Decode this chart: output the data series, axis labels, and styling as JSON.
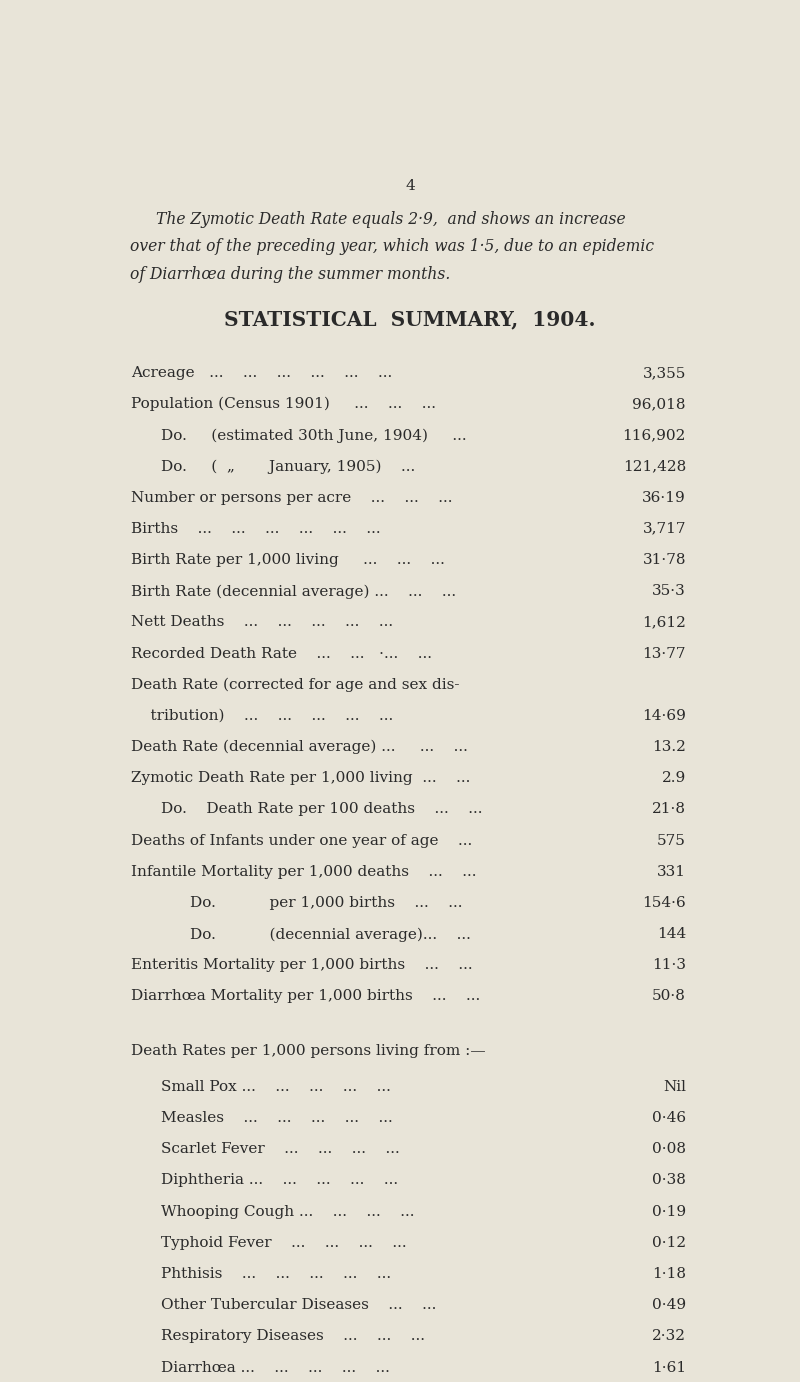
{
  "page_number": "4",
  "bg_color": "#e8e4d8",
  "text_color": "#2a2a2a",
  "intro_lines": [
    "The Zymotic Death Rate equals 2·9,  and shows an increase",
    "over that of the preceding year, which was 1·5, due to an epidemic",
    "of Diarrhœa during the summer months."
  ],
  "title": "STATISTICAL  SUMMARY,  1904.",
  "rows": [
    {
      "label": "Acreage   ...    ...    ...    ...    ...    ...",
      "indent": 0,
      "value": "3,355"
    },
    {
      "label": "Population (Census 1901)     ...    ...    ...",
      "indent": 0,
      "value": "96,018"
    },
    {
      "label": "Do.     (estimated 30th June, 1904)     ...",
      "indent": 1,
      "value": "116,902"
    },
    {
      "label": "Do.     (  „       January, 1905)    ...",
      "indent": 1,
      "value": "121,428"
    },
    {
      "label": "Number or persons per acre    ...    ...    ...",
      "indent": 0,
      "value": "36·19"
    },
    {
      "label": "Births    ...    ...    ...    ...    ...    ...",
      "indent": 0,
      "value": "3,717"
    },
    {
      "label": "Birth Rate per 1,000 living     ...    ...    ...",
      "indent": 0,
      "value": "31·78"
    },
    {
      "label": "Birth Rate (decennial average) ...    ...    ...",
      "indent": 0,
      "value": "35·3"
    },
    {
      "label": "Nett Deaths    ...    ...    ...    ...    ...",
      "indent": 0,
      "value": "1,612"
    },
    {
      "label": "Recorded Death Rate    ...    ...   ·...    ...",
      "indent": 0,
      "value": "13·77"
    },
    {
      "label": "Death Rate (corrected for age and sex dis-",
      "indent": 0,
      "value": ""
    },
    {
      "label": "    tribution)    ...    ...    ...    ...    ...",
      "indent": 0,
      "value": "14·69"
    },
    {
      "label": "Death Rate (decennial average) ...     ...    ...",
      "indent": 0,
      "value": "13.2"
    },
    {
      "label": "Zymotic Death Rate per 1,000 living  ...    ...",
      "indent": 0,
      "value": "2.9"
    },
    {
      "label": "Do.    Death Rate per 100 deaths    ...    ...",
      "indent": 1,
      "value": "21·8"
    },
    {
      "label": "Deaths of Infants under one year of age    ...",
      "indent": 0,
      "value": "575"
    },
    {
      "label": "Infantile Mortality per 1,000 deaths    ...    ...",
      "indent": 0,
      "value": "331"
    },
    {
      "label": "Do.           per 1,000 births    ...    ...",
      "indent": 2,
      "value": "154·6"
    },
    {
      "label": "Do.           (decennial average)...    ...",
      "indent": 2,
      "value": "144"
    },
    {
      "label": "Enteritis Mortality per 1,000 births    ...    ...",
      "indent": 0,
      "value": "11·3"
    },
    {
      "label": "Diarrhœa Mortality per 1,000 births    ...    ...",
      "indent": 0,
      "value": "50·8"
    }
  ],
  "section2_header": "Death Rates per 1,000 persons living from :—",
  "rows2": [
    {
      "label": "Small Pox ...    ...    ...    ...    ...",
      "indent": 1,
      "value": "Nil"
    },
    {
      "label": "Measles    ...    ...    ...    ...    ...",
      "indent": 1,
      "value": "0·46"
    },
    {
      "label": "Scarlet Fever    ...    ...    ...    ...",
      "indent": 1,
      "value": "0·08"
    },
    {
      "label": "Diphtheria ...    ...    ...    ...    ...",
      "indent": 1,
      "value": "0·38"
    },
    {
      "label": "Whooping Cough ...    ...    ...    ...",
      "indent": 1,
      "value": "0·19"
    },
    {
      "label": "Typhoid Fever    ...    ...    ...    ...",
      "indent": 1,
      "value": "0·12"
    },
    {
      "label": "Phthisis    ...    ...    ...    ...    ...",
      "indent": 1,
      "value": "1·18"
    },
    {
      "label": "Other Tubercular Diseases    ...    ...",
      "indent": 1,
      "value": "0·49"
    },
    {
      "label": "Respiratory Diseases    ...    ...    ...",
      "indent": 1,
      "value": "2·32"
    },
    {
      "label": "Diarrhœa ...    ...    ...    ...    ...",
      "indent": 1,
      "value": "1·61"
    }
  ]
}
